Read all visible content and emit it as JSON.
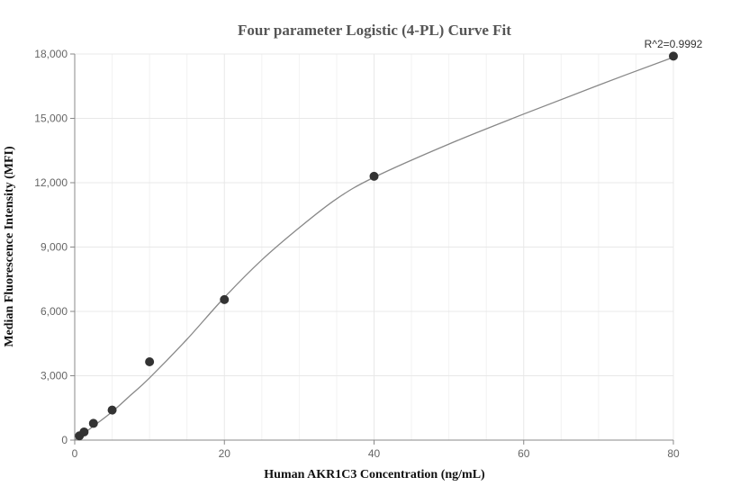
{
  "chart_data": {
    "type": "scatter",
    "title": "Four parameter Logistic (4-PL) Curve Fit",
    "xlabel": "Human AKR1C3 Concentration (ng/mL)",
    "ylabel": "Median Fluorescence Intensity (MFI)",
    "xlim": [
      0,
      80
    ],
    "ylim": [
      0,
      18000
    ],
    "x_ticks": [
      0,
      20,
      40,
      60,
      80
    ],
    "x_tick_labels": [
      "0",
      "20",
      "40",
      "60",
      "80"
    ],
    "y_ticks": [
      0,
      3000,
      6000,
      9000,
      12000,
      15000,
      18000
    ],
    "y_tick_labels": [
      "0",
      "3,000",
      "6,000",
      "9,000",
      "12,000",
      "15,000",
      "18,000"
    ],
    "grid": true,
    "annotation": "R^2=0.9992",
    "colors": {
      "points": "#333333",
      "curve": "#888888",
      "grid": "#e8e8e8",
      "axis": "#888888"
    },
    "series": [
      {
        "type": "scatter",
        "x": [
          0.625,
          1.25,
          2.5,
          5,
          10,
          20,
          40,
          80
        ],
        "y": [
          200,
          380,
          780,
          1400,
          3650,
          6550,
          12300,
          17900
        ]
      },
      {
        "type": "line",
        "x": [
          0,
          2.5,
          5,
          7.5,
          10,
          15,
          20,
          25,
          30,
          35,
          40,
          50,
          60,
          70,
          80
        ],
        "y": [
          0,
          650,
          1320,
          2100,
          2900,
          4700,
          6650,
          8400,
          9900,
          11250,
          12250,
          13800,
          15200,
          16550,
          17850
        ]
      }
    ]
  }
}
